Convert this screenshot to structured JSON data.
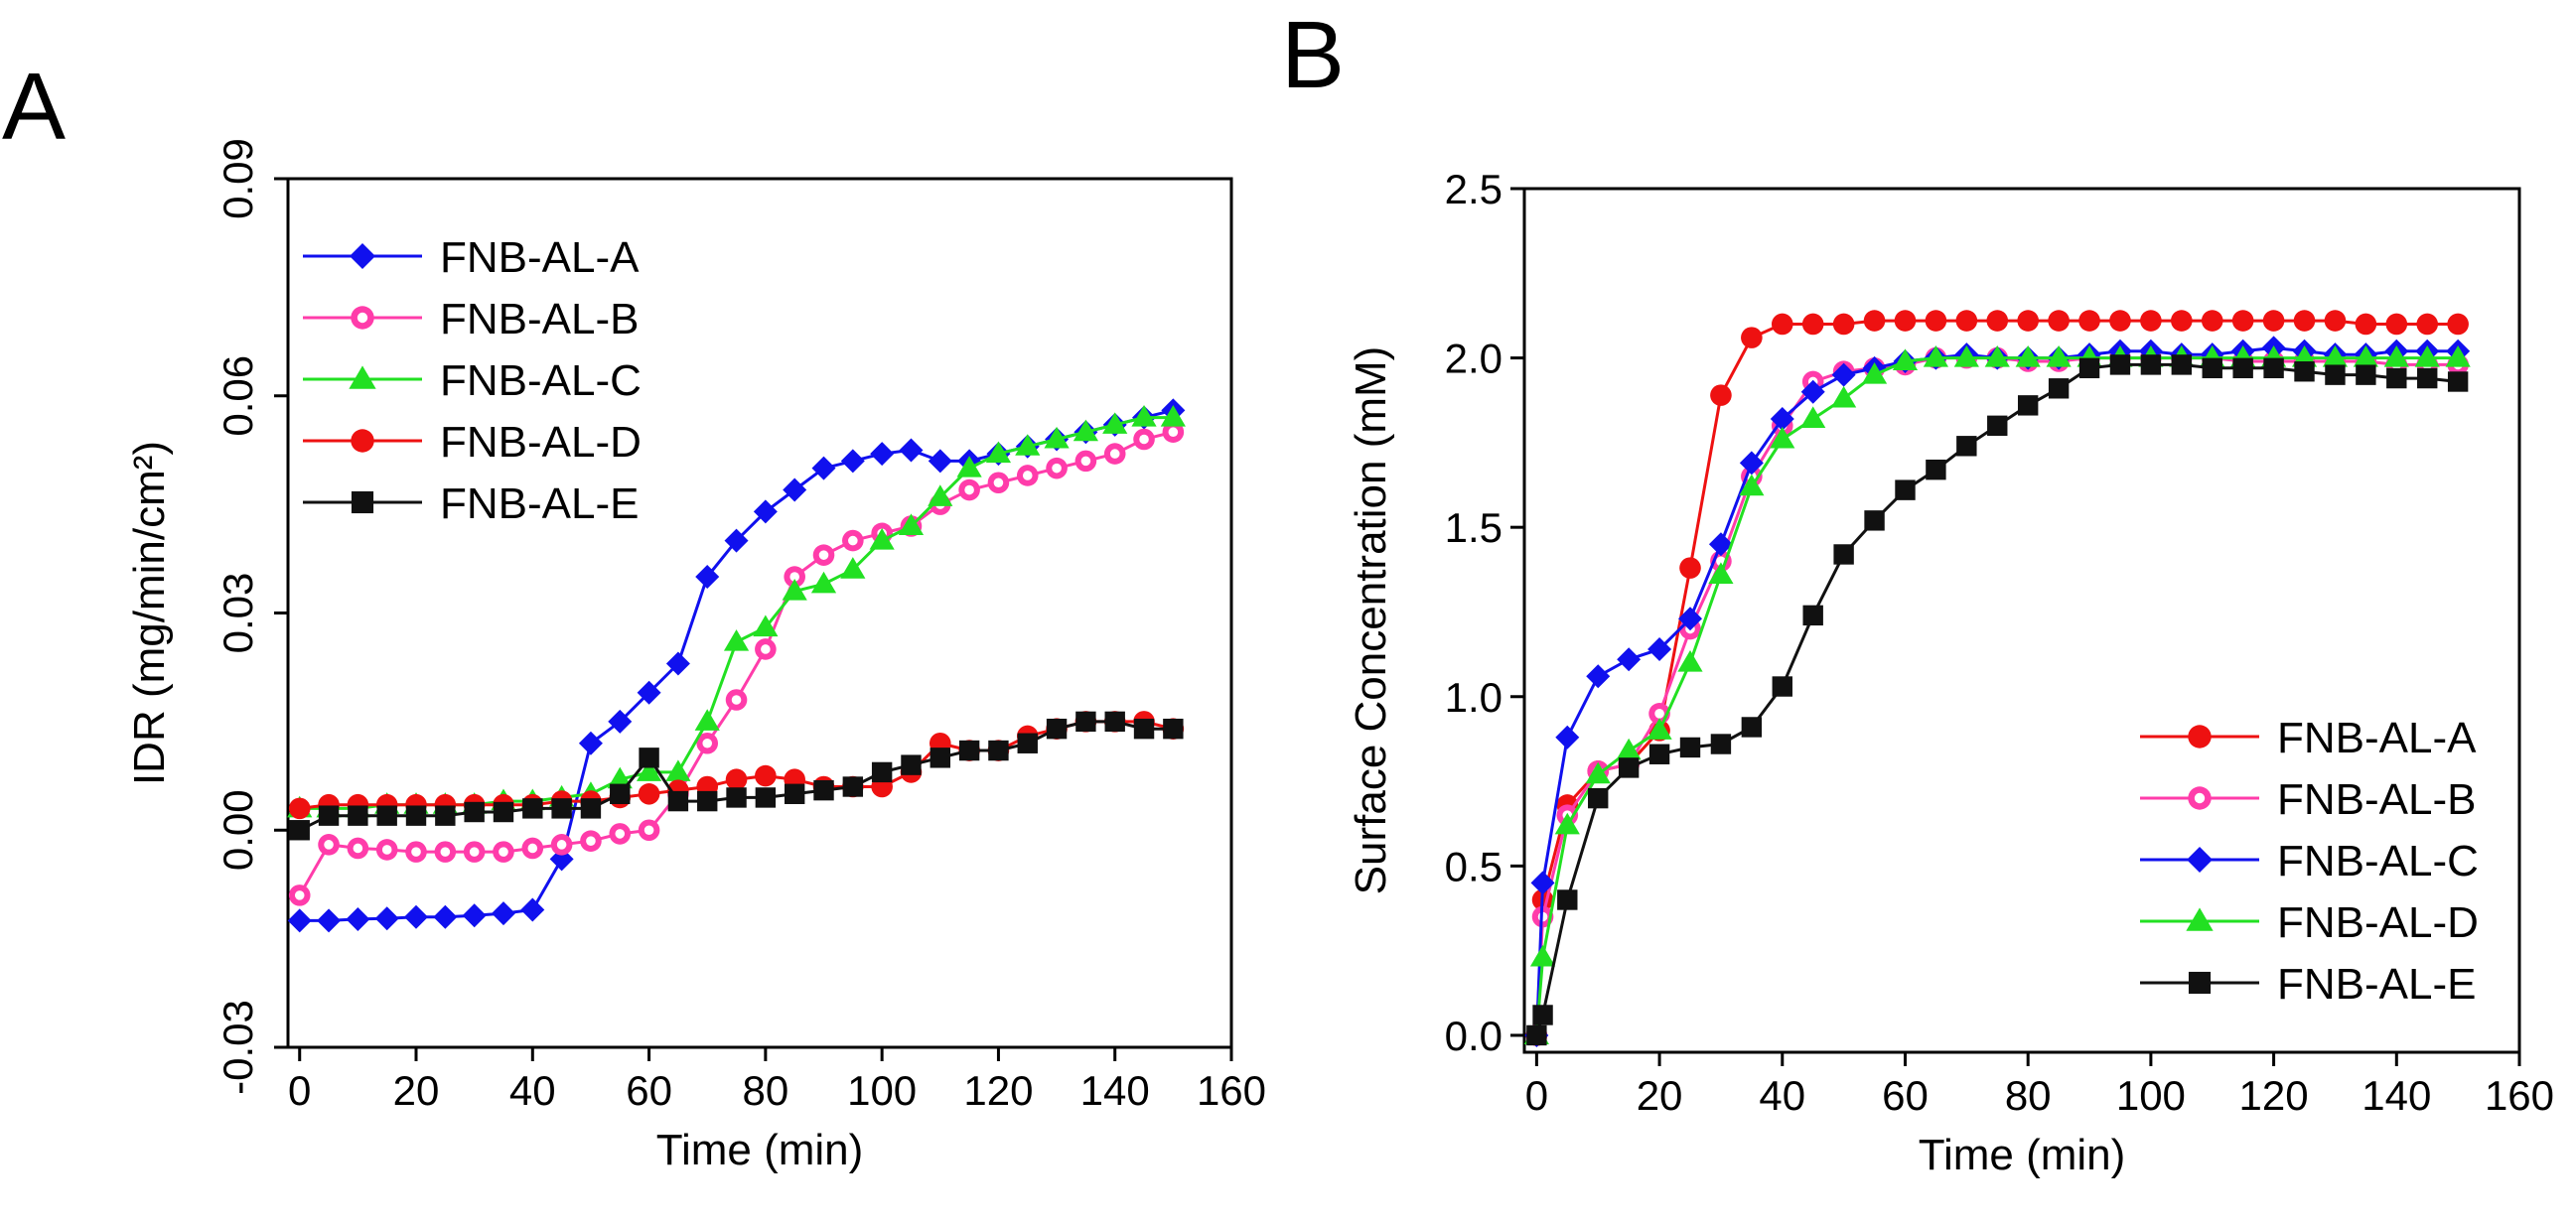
{
  "chart_data": [
    {
      "panel_label": "A",
      "type": "line",
      "xlabel": "Time (min)",
      "ylabel": "IDR (mg/min/cm²)",
      "xlim": [
        -2,
        160
      ],
      "ylim": [
        -0.03,
        0.09
      ],
      "x_ticks": [
        0,
        20,
        40,
        60,
        80,
        100,
        120,
        140,
        160
      ],
      "x_tick_labels": [
        "0",
        "20",
        "40",
        "60",
        "80",
        "100",
        "120",
        "140",
        "160"
      ],
      "y_ticks": [
        -0.03,
        0.0,
        0.03,
        0.06,
        0.09
      ],
      "y_tick_labels": [
        "-0.03",
        "0.00",
        "0.03",
        "0.06",
        "0.09"
      ],
      "legend_position": "top-left",
      "series": [
        {
          "name": "FNB-AL-A",
          "color": "#1010ee",
          "marker": "diamond",
          "x": [
            0,
            5,
            10,
            15,
            20,
            25,
            30,
            35,
            40,
            45,
            50,
            55,
            60,
            65,
            70,
            75,
            80,
            85,
            90,
            95,
            100,
            105,
            110,
            115,
            120,
            125,
            130,
            135,
            140,
            145,
            150
          ],
          "y": [
            -0.0125,
            -0.0125,
            -0.0123,
            -0.0122,
            -0.012,
            -0.012,
            -0.0118,
            -0.0115,
            -0.011,
            -0.004,
            0.012,
            0.015,
            0.019,
            0.023,
            0.035,
            0.04,
            0.044,
            0.047,
            0.05,
            0.051,
            0.052,
            0.0525,
            0.051,
            0.051,
            0.052,
            0.053,
            0.054,
            0.055,
            0.056,
            0.057,
            0.058
          ]
        },
        {
          "name": "FNB-AL-B",
          "color": "#ff3caa",
          "marker": "circle-open",
          "x": [
            0,
            5,
            10,
            15,
            20,
            25,
            30,
            35,
            40,
            45,
            50,
            55,
            60,
            65,
            70,
            75,
            80,
            85,
            90,
            95,
            100,
            105,
            110,
            115,
            120,
            125,
            130,
            135,
            140,
            145,
            150
          ],
          "y": [
            -0.009,
            -0.002,
            -0.0025,
            -0.0027,
            -0.003,
            -0.003,
            -0.003,
            -0.003,
            -0.0025,
            -0.002,
            -0.0015,
            -0.0005,
            0.0,
            0.005,
            0.012,
            0.018,
            0.025,
            0.035,
            0.038,
            0.04,
            0.041,
            0.042,
            0.045,
            0.047,
            0.048,
            0.049,
            0.05,
            0.051,
            0.052,
            0.054,
            0.055
          ]
        },
        {
          "name": "FNB-AL-C",
          "color": "#22e022",
          "marker": "triangle",
          "x": [
            0,
            5,
            10,
            15,
            20,
            25,
            30,
            35,
            40,
            45,
            50,
            55,
            60,
            65,
            70,
            75,
            80,
            85,
            90,
            95,
            100,
            105,
            110,
            115,
            120,
            125,
            130,
            135,
            140,
            145,
            150
          ],
          "y": [
            0.003,
            0.003,
            0.003,
            0.0035,
            0.0035,
            0.0035,
            0.0035,
            0.004,
            0.004,
            0.0045,
            0.005,
            0.007,
            0.008,
            0.008,
            0.015,
            0.026,
            0.028,
            0.033,
            0.034,
            0.036,
            0.04,
            0.042,
            0.046,
            0.05,
            0.052,
            0.053,
            0.054,
            0.055,
            0.056,
            0.057,
            0.057
          ]
        },
        {
          "name": "FNB-AL-D",
          "color": "#ee1111",
          "marker": "circle",
          "x": [
            0,
            5,
            10,
            15,
            20,
            25,
            30,
            35,
            40,
            45,
            50,
            55,
            60,
            65,
            70,
            75,
            80,
            85,
            90,
            95,
            100,
            105,
            110,
            115,
            120,
            125,
            130,
            135,
            140,
            145,
            150
          ],
          "y": [
            0.003,
            0.0035,
            0.0035,
            0.0035,
            0.0035,
            0.0035,
            0.0035,
            0.0035,
            0.0035,
            0.004,
            0.004,
            0.0045,
            0.005,
            0.0055,
            0.006,
            0.007,
            0.0075,
            0.007,
            0.006,
            0.006,
            0.006,
            0.008,
            0.012,
            0.011,
            0.011,
            0.013,
            0.014,
            0.015,
            0.015,
            0.015,
            0.014
          ]
        },
        {
          "name": "FNB-AL-E",
          "color": "#111111",
          "marker": "square",
          "x": [
            0,
            5,
            10,
            15,
            20,
            25,
            30,
            35,
            40,
            45,
            50,
            55,
            60,
            65,
            70,
            75,
            80,
            85,
            90,
            95,
            100,
            105,
            110,
            115,
            120,
            125,
            130,
            135,
            140,
            145,
            150
          ],
          "y": [
            0.0,
            0.002,
            0.002,
            0.002,
            0.002,
            0.002,
            0.0025,
            0.0025,
            0.003,
            0.003,
            0.003,
            0.005,
            0.01,
            0.004,
            0.004,
            0.0045,
            0.0045,
            0.005,
            0.0055,
            0.006,
            0.008,
            0.009,
            0.01,
            0.011,
            0.011,
            0.012,
            0.014,
            0.015,
            0.015,
            0.014,
            0.014
          ]
        }
      ]
    },
    {
      "panel_label": "B",
      "type": "line",
      "xlabel": "Time (min)",
      "ylabel": "Surface Concentration (mM)",
      "xlim": [
        -2,
        160
      ],
      "ylim": [
        -0.05,
        2.5
      ],
      "x_ticks": [
        0,
        20,
        40,
        60,
        80,
        100,
        120,
        140,
        160
      ],
      "x_tick_labels": [
        "0",
        "20",
        "40",
        "60",
        "80",
        "100",
        "120",
        "140",
        "160"
      ],
      "y_ticks": [
        0.0,
        0.5,
        1.0,
        1.5,
        2.0,
        2.5
      ],
      "y_tick_labels": [
        "0.0",
        "0.5",
        "1.0",
        "1.5",
        "2.0",
        "2.5"
      ],
      "legend_position": "bottom-right",
      "series": [
        {
          "name": "FNB-AL-A",
          "color": "#ee1111",
          "marker": "circle",
          "x": [
            0,
            1,
            5,
            10,
            15,
            20,
            25,
            30,
            35,
            40,
            45,
            50,
            55,
            60,
            65,
            70,
            75,
            80,
            85,
            90,
            95,
            100,
            105,
            110,
            115,
            120,
            125,
            130,
            135,
            140,
            145,
            150
          ],
          "y": [
            0.0,
            0.4,
            0.68,
            0.78,
            0.8,
            0.9,
            1.38,
            1.89,
            2.06,
            2.1,
            2.1,
            2.1,
            2.11,
            2.11,
            2.11,
            2.11,
            2.11,
            2.11,
            2.11,
            2.11,
            2.11,
            2.11,
            2.11,
            2.11,
            2.11,
            2.11,
            2.11,
            2.11,
            2.1,
            2.1,
            2.1,
            2.1
          ]
        },
        {
          "name": "FNB-AL-B",
          "color": "#ff3caa",
          "marker": "circle-open",
          "x": [
            0,
            1,
            5,
            10,
            15,
            20,
            25,
            30,
            35,
            40,
            45,
            50,
            55,
            60,
            65,
            70,
            75,
            80,
            85,
            90,
            95,
            100,
            105,
            110,
            115,
            120,
            125,
            130,
            135,
            140,
            145,
            150
          ],
          "y": [
            0.0,
            0.35,
            0.65,
            0.78,
            0.8,
            0.95,
            1.2,
            1.4,
            1.65,
            1.8,
            1.93,
            1.96,
            1.97,
            1.98,
            2.0,
            2.0,
            2.0,
            1.99,
            1.99,
            2.0,
            2.0,
            2.0,
            2.0,
            2.0,
            1.99,
            1.99,
            1.99,
            1.99,
            1.99,
            1.98,
            1.98,
            1.98
          ]
        },
        {
          "name": "FNB-AL-C",
          "color": "#1010ee",
          "marker": "diamond",
          "x": [
            0,
            1,
            5,
            10,
            15,
            20,
            25,
            30,
            35,
            40,
            45,
            50,
            55,
            60,
            65,
            70,
            75,
            80,
            85,
            90,
            95,
            100,
            105,
            110,
            115,
            120,
            125,
            130,
            135,
            140,
            145,
            150
          ],
          "y": [
            0.0,
            0.45,
            0.88,
            1.06,
            1.11,
            1.14,
            1.23,
            1.45,
            1.69,
            1.82,
            1.9,
            1.95,
            1.97,
            1.99,
            2.0,
            2.01,
            2.0,
            2.0,
            2.0,
            2.01,
            2.02,
            2.02,
            2.01,
            2.01,
            2.02,
            2.03,
            2.02,
            2.01,
            2.01,
            2.02,
            2.02,
            2.02
          ]
        },
        {
          "name": "FNB-AL-D",
          "color": "#22e022",
          "marker": "triangle",
          "x": [
            0,
            1,
            5,
            10,
            15,
            20,
            25,
            30,
            35,
            40,
            45,
            50,
            55,
            60,
            65,
            70,
            75,
            80,
            85,
            90,
            95,
            100,
            105,
            110,
            115,
            120,
            125,
            130,
            135,
            140,
            145,
            150
          ],
          "y": [
            0.0,
            0.23,
            0.62,
            0.77,
            0.84,
            0.9,
            1.1,
            1.36,
            1.62,
            1.76,
            1.82,
            1.88,
            1.95,
            1.99,
            2.0,
            2.0,
            2.0,
            2.0,
            2.0,
            2.0,
            2.0,
            2.0,
            2.0,
            2.0,
            2.0,
            2.0,
            2.0,
            2.0,
            2.0,
            2.0,
            2.0,
            2.0
          ]
        },
        {
          "name": "FNB-AL-E",
          "color": "#111111",
          "marker": "square",
          "x": [
            0,
            1,
            5,
            10,
            15,
            20,
            25,
            30,
            35,
            40,
            45,
            50,
            55,
            60,
            65,
            70,
            75,
            80,
            85,
            90,
            95,
            100,
            105,
            110,
            115,
            120,
            125,
            130,
            135,
            140,
            145,
            150
          ],
          "y": [
            0.0,
            0.06,
            0.4,
            0.7,
            0.79,
            0.83,
            0.85,
            0.86,
            0.91,
            1.03,
            1.24,
            1.42,
            1.52,
            1.61,
            1.67,
            1.74,
            1.8,
            1.86,
            1.91,
            1.97,
            1.98,
            1.98,
            1.98,
            1.97,
            1.97,
            1.97,
            1.96,
            1.95,
            1.95,
            1.94,
            1.94,
            1.93
          ]
        }
      ]
    }
  ]
}
